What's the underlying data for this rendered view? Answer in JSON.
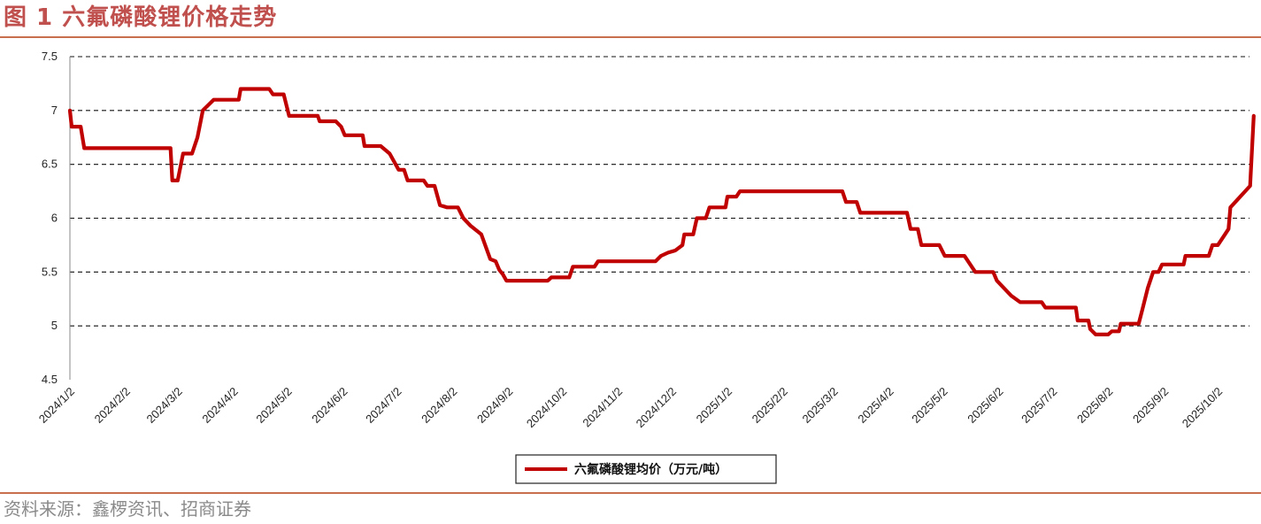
{
  "figure": {
    "title": "图 1  六氟磷酸锂价格走势",
    "source": "资料来源：鑫椤资讯、招商证券"
  },
  "colors": {
    "accent": "#c0504d",
    "line": "#c00000",
    "rule": "#c8704e"
  },
  "chart_data": {
    "type": "line",
    "title": "",
    "xlabel": "",
    "ylabel": "",
    "ylim": [
      4.5,
      7.5
    ],
    "yticks": [
      "7.5",
      "7",
      "6.5",
      "6",
      "5.5",
      "5",
      "4.5"
    ],
    "xticks": [
      "2024/1/2",
      "2024/2/2",
      "2024/3/2",
      "2024/4/2",
      "2024/5/2",
      "2024/6/2",
      "2024/7/2",
      "2024/8/2",
      "2024/9/2",
      "2024/10/2",
      "2024/11/2",
      "2024/12/2",
      "2025/1/2",
      "2025/2/2",
      "2025/3/2",
      "2025/4/2",
      "2025/5/2",
      "2025/6/2",
      "2025/7/2",
      "2025/8/2",
      "2025/9/2",
      "2025/10/2"
    ],
    "grid": "horizontal dashed",
    "legend_position": "bottom",
    "series": [
      {
        "name": "六氟磷酸锂均价（万元/吨）",
        "points": [
          [
            "2024/1/2",
            7.0
          ],
          [
            "2024/1/3",
            6.85
          ],
          [
            "2024/1/8",
            6.85
          ],
          [
            "2024/1/9",
            6.75
          ],
          [
            "2024/1/10",
            6.65
          ],
          [
            "2024/2/27",
            6.65
          ],
          [
            "2024/2/28",
            6.35
          ],
          [
            "2024/3/2",
            6.35
          ],
          [
            "2024/3/5",
            6.6
          ],
          [
            "2024/3/10",
            6.6
          ],
          [
            "2024/3/13",
            6.75
          ],
          [
            "2024/3/16",
            7.0
          ],
          [
            "2024/3/22",
            7.1
          ],
          [
            "2024/4/5",
            7.1
          ],
          [
            "2024/4/6",
            7.2
          ],
          [
            "2024/4/22",
            7.2
          ],
          [
            "2024/4/24",
            7.15
          ],
          [
            "2024/4/30",
            7.15
          ],
          [
            "2024/5/3",
            6.95
          ],
          [
            "2024/5/19",
            6.95
          ],
          [
            "2024/5/20",
            6.9
          ],
          [
            "2024/5/29",
            6.9
          ],
          [
            "2024/6/1",
            6.85
          ],
          [
            "2024/6/3",
            6.77
          ],
          [
            "2024/6/13",
            6.77
          ],
          [
            "2024/6/14",
            6.67
          ],
          [
            "2024/6/23",
            6.67
          ],
          [
            "2024/6/28",
            6.6
          ],
          [
            "2024/7/3",
            6.45
          ],
          [
            "2024/7/6",
            6.45
          ],
          [
            "2024/7/8",
            6.35
          ],
          [
            "2024/7/17",
            6.35
          ],
          [
            "2024/7/19",
            6.3
          ],
          [
            "2024/7/23",
            6.3
          ],
          [
            "2024/7/26",
            6.12
          ],
          [
            "2024/7/30",
            6.1
          ],
          [
            "2024/8/5",
            6.1
          ],
          [
            "2024/8/8",
            6.0
          ],
          [
            "2024/8/12",
            5.93
          ],
          [
            "2024/8/18",
            5.85
          ],
          [
            "2024/8/23",
            5.62
          ],
          [
            "2024/8/26",
            5.6
          ],
          [
            "2024/8/28",
            5.52
          ],
          [
            "2024/8/30",
            5.48
          ],
          [
            "2024/9/1",
            5.42
          ],
          [
            "2024/9/24",
            5.42
          ],
          [
            "2024/9/26",
            5.45
          ],
          [
            "2024/10/6",
            5.45
          ],
          [
            "2024/10/8",
            5.55
          ],
          [
            "2024/10/20",
            5.55
          ],
          [
            "2024/10/22",
            5.6
          ],
          [
            "2024/11/23",
            5.6
          ],
          [
            "2024/11/26",
            5.65
          ],
          [
            "2024/11/30",
            5.68
          ],
          [
            "2024/12/4",
            5.7
          ],
          [
            "2024/12/8",
            5.75
          ],
          [
            "2024/12/9",
            5.85
          ],
          [
            "2024/12/14",
            5.85
          ],
          [
            "2024/12/16",
            6.0
          ],
          [
            "2024/12/21",
            6.0
          ],
          [
            "2024/12/23",
            6.1
          ],
          [
            "2025/1/1",
            6.1
          ],
          [
            "2025/1/2",
            6.2
          ],
          [
            "2025/1/7",
            6.2
          ],
          [
            "2025/1/9",
            6.25
          ],
          [
            "2025/3/7",
            6.25
          ],
          [
            "2025/3/9",
            6.15
          ],
          [
            "2025/3/15",
            6.15
          ],
          [
            "2025/3/17",
            6.05
          ],
          [
            "2025/4/12",
            6.05
          ],
          [
            "2025/4/14",
            5.9
          ],
          [
            "2025/4/18",
            5.9
          ],
          [
            "2025/4/20",
            5.75
          ],
          [
            "2025/4/30",
            5.75
          ],
          [
            "2025/5/3",
            5.65
          ],
          [
            "2025/5/14",
            5.65
          ],
          [
            "2025/5/18",
            5.55
          ],
          [
            "2025/5/20",
            5.5
          ],
          [
            "2025/5/30",
            5.5
          ],
          [
            "2025/6/1",
            5.42
          ],
          [
            "2025/6/5",
            5.35
          ],
          [
            "2025/6/9",
            5.28
          ],
          [
            "2025/6/14",
            5.22
          ],
          [
            "2025/6/26",
            5.22
          ],
          [
            "2025/6/28",
            5.17
          ],
          [
            "2025/7/15",
            5.17
          ],
          [
            "2025/7/16",
            5.05
          ],
          [
            "2025/7/22",
            5.05
          ],
          [
            "2025/7/23",
            4.97
          ],
          [
            "2025/7/26",
            4.92
          ],
          [
            "2025/8/2",
            4.92
          ],
          [
            "2025/8/4",
            4.95
          ],
          [
            "2025/8/8",
            4.95
          ],
          [
            "2025/8/9",
            5.02
          ],
          [
            "2025/8/19",
            5.02
          ],
          [
            "2025/8/21",
            5.15
          ],
          [
            "2025/8/24",
            5.35
          ],
          [
            "2025/8/27",
            5.5
          ],
          [
            "2025/8/30",
            5.5
          ],
          [
            "2025/9/1",
            5.57
          ],
          [
            "2025/9/13",
            5.57
          ],
          [
            "2025/9/14",
            5.65
          ],
          [
            "2025/9/27",
            5.65
          ],
          [
            "2025/9/29",
            5.75
          ],
          [
            "2025/10/2",
            5.75
          ],
          [
            "2025/10/6",
            5.85
          ],
          [
            "2025/10/8",
            5.9
          ],
          [
            "2025/10/9",
            6.1
          ],
          [
            "2025/10/20",
            6.3
          ],
          [
            "2025/10/22",
            6.95
          ]
        ]
      }
    ]
  }
}
